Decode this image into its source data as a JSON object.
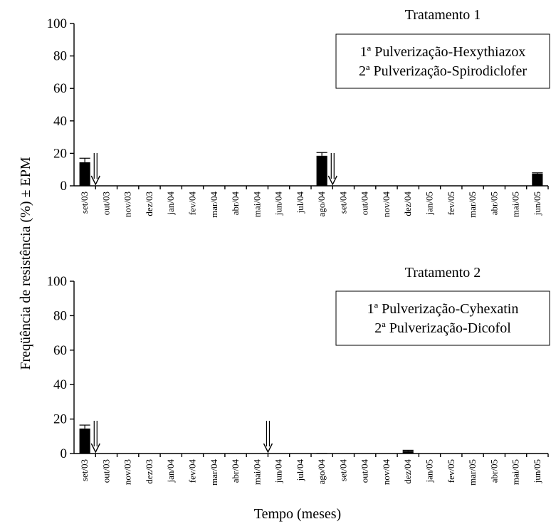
{
  "chart_data": [
    {
      "type": "bar",
      "title": "Tratamento 1",
      "legend_box": [
        "1ª Pulverização-Hexythiazox",
        "2ª Pulverização-Spirodiclofer"
      ],
      "categories": [
        "set/03",
        "out/03",
        "nov/03",
        "dez/03",
        "jan/04",
        "fev/04",
        "mar/04",
        "abr/04",
        "mai/04",
        "jun/04",
        "jul/04",
        "ago/04",
        "set/04",
        "out/04",
        "nov/04",
        "dez/04",
        "jan/05",
        "fev/05",
        "mar/05",
        "abr/05",
        "mai/05",
        "jun/05"
      ],
      "values": [
        14.5,
        0,
        0,
        0,
        0,
        0,
        0,
        0,
        0,
        0,
        0,
        18.5,
        0,
        0,
        0,
        0,
        0,
        0,
        0,
        0,
        0,
        7.5
      ],
      "errors": [
        2.5,
        0,
        0,
        0,
        0,
        0,
        0,
        0,
        0,
        0,
        0,
        2.0,
        0,
        0,
        0,
        0,
        0,
        0,
        0,
        0,
        0,
        0.5
      ],
      "spray_arrows_at": [
        "out/03",
        "set/04"
      ],
      "ylim": [
        0,
        100
      ],
      "yticks": [
        0,
        20,
        40,
        60,
        80,
        100
      ]
    },
    {
      "type": "bar",
      "title": "Tratamento 2",
      "legend_box": [
        "1ª Pulverização-Cyhexatin",
        "2ª Pulverização-Dicofol"
      ],
      "categories": [
        "set/03",
        "out/03",
        "nov/03",
        "dez/03",
        "jan/04",
        "fev/04",
        "mar/04",
        "abr/04",
        "mai/04",
        "jun/04",
        "jul/04",
        "ago/04",
        "set/04",
        "out/04",
        "nov/04",
        "dez/04",
        "jan/05",
        "fev/05",
        "mar/05",
        "abr/05",
        "mai/05",
        "jun/05"
      ],
      "values": [
        14.5,
        0,
        0,
        0,
        0,
        0,
        0,
        0,
        0,
        0,
        0,
        0.3,
        0,
        0,
        0,
        1.5,
        0,
        0,
        0,
        0,
        0,
        0
      ],
      "errors": [
        2.0,
        0,
        0,
        0,
        0,
        0,
        0,
        0,
        0,
        0,
        0,
        0,
        0,
        0,
        0,
        0.4,
        0,
        0,
        0,
        0,
        0,
        0
      ],
      "spray_arrows_at": [
        "out/03",
        "jun/04"
      ],
      "ylim": [
        0,
        100
      ],
      "yticks": [
        0,
        20,
        40,
        60,
        80,
        100
      ]
    }
  ],
  "ylabel": "Freqüência de resistência (%) ± EPM",
  "xlabel": "Tempo (meses)"
}
